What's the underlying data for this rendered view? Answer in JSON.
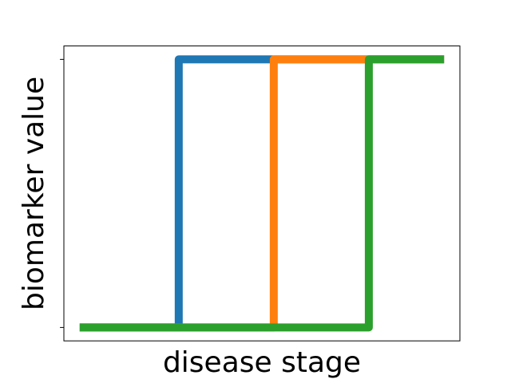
{
  "chart_data": {
    "type": "line",
    "title": "",
    "xlabel": "disease stage",
    "ylabel": "biomarker value",
    "xlim": [
      0,
      1
    ],
    "ylim": [
      -0.05,
      1.05
    ],
    "grid": false,
    "legend": "none",
    "x_ticks": [],
    "y_ticks": [
      0,
      1
    ],
    "series": [
      {
        "color": "#1f77b4",
        "x": [
          0.04,
          0.29,
          0.29,
          0.96
        ],
        "y": [
          0,
          0,
          1,
          1
        ]
      },
      {
        "color": "#ff7f0e",
        "x": [
          0.04,
          0.53,
          0.53,
          0.96
        ],
        "y": [
          0,
          0,
          1,
          1
        ]
      },
      {
        "color": "#2ca02c",
        "x": [
          0.04,
          0.77,
          0.77,
          0.96
        ],
        "y": [
          0,
          0,
          1,
          1
        ]
      }
    ]
  }
}
